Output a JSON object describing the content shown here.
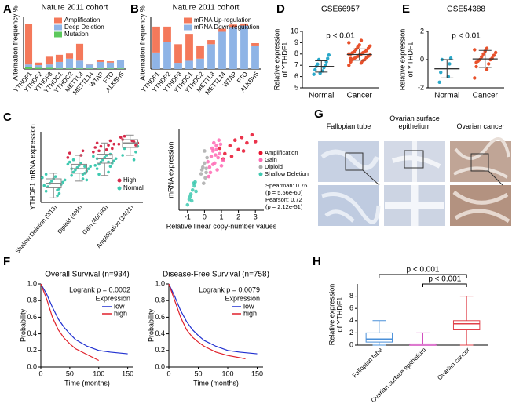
{
  "chart_data": [
    {
      "panel": "A",
      "type": "bar",
      "stacked": true,
      "title": "Nature 2011 cohort",
      "y_label": "Alternation frequency %",
      "categories": [
        "YTHDF1",
        "YTHDF2",
        "YTHDF3",
        "YTHDC1",
        "YTHDC2",
        "METTL3",
        "METTL14",
        "WTAP",
        "FTO",
        "ALKBH5"
      ],
      "ylim": [
        0,
        8
      ],
      "series": [
        {
          "name": "Amplification",
          "color": "#f4795b",
          "values": [
            6.3,
            0.4,
            1.2,
            1.1,
            0.8,
            2.6,
            0.1,
            0.3,
            0.2,
            0
          ]
        },
        {
          "name": "Deep Deletion",
          "color": "#8fb4e6",
          "values": [
            0.4,
            0.4,
            0.5,
            1.0,
            1.5,
            1.2,
            0.6,
            1.0,
            0.9,
            1.3
          ]
        },
        {
          "name": "Mutation",
          "color": "#5cc85c",
          "values": [
            0.3,
            0.2,
            0.2,
            0.1,
            0.1,
            0.1,
            0.1,
            0.1,
            0.1,
            0.1
          ]
        }
      ]
    },
    {
      "panel": "B",
      "type": "bar",
      "stacked": true,
      "title": "Nature 2011 cohort",
      "y_label": "Alternation frequency %",
      "categories": [
        "YTHDF1",
        "YTHDF2",
        "YTHDF3",
        "YTHDC1",
        "YTHDC2",
        "METTL3",
        "METTL14",
        "WTAP",
        "FTO",
        "ALKBH5"
      ],
      "ylim": [
        0,
        25
      ],
      "series": [
        {
          "name": "mRNA Up-regulation",
          "color": "#f4795b",
          "values": [
            12.5,
            7.5,
            9,
            13,
            6,
            2,
            1.5,
            1.5,
            1,
            1.5
          ]
        },
        {
          "name": "mRNA Down-regulation",
          "color": "#8fb4e6",
          "values": [
            8,
            13,
            3,
            4,
            5,
            12,
            18,
            20,
            21,
            11
          ]
        }
      ]
    },
    {
      "panel": "D",
      "type": "dot",
      "title": "GSE66957",
      "annotation": "p < 0.01",
      "y_label": [
        "Relative expression",
        "of YTHDF1"
      ],
      "categories": [
        "Normal",
        "Cancer"
      ],
      "ylim": [
        5,
        10
      ],
      "yticks": [
        5,
        6,
        7,
        8,
        9,
        10
      ],
      "groups": [
        {
          "color": "#2aa8c9",
          "mean": 6.9,
          "sd": 0.5,
          "values": [
            6.2,
            6.5,
            6.6,
            6.8,
            6.9,
            7.0,
            7.1,
            7.3,
            7.5,
            7.6,
            6.3,
            7.9
          ]
        },
        {
          "color": "#e8502a",
          "mean": 7.95,
          "sd": 0.5,
          "values": [
            7.0,
            7.2,
            7.3,
            7.4,
            7.5,
            7.5,
            7.6,
            7.7,
            7.7,
            7.8,
            7.8,
            7.9,
            7.9,
            8.0,
            8.0,
            8.0,
            8.1,
            8.1,
            8.2,
            8.2,
            8.3,
            8.4,
            8.5,
            8.6,
            8.7,
            8.8,
            9.0,
            9.2,
            7.6,
            8.1
          ]
        }
      ]
    },
    {
      "panel": "E",
      "type": "dot",
      "title": "GSE54388",
      "annotation": "p < 0.01",
      "y_label": [
        "Relative expression",
        "of YTHDF1"
      ],
      "categories": [
        "Normal",
        "Cancer"
      ],
      "ylim": [
        -2,
        2
      ],
      "yticks": [
        -2,
        0,
        2
      ],
      "groups": [
        {
          "color": "#2aa8c9",
          "mean": -0.65,
          "sd": 0.65,
          "values": [
            -1.6,
            -1.2,
            -0.9,
            -0.3,
            0.0,
            0.1
          ]
        },
        {
          "color": "#e8502a",
          "mean": 0.05,
          "sd": 0.6,
          "values": [
            -1.3,
            -0.7,
            -0.5,
            -0.3,
            -0.1,
            0,
            0,
            0.1,
            0.2,
            0.3,
            0.4,
            0.5,
            0.6,
            0.7,
            0.8,
            -0.2
          ]
        }
      ]
    },
    {
      "panel": "C",
      "type": "box",
      "y_label": "YTHDF1 mRNA expression",
      "categories": [
        "Shallow Deletion (0/18)",
        "Diploid (4/84)",
        "Gain (40/193)",
        "Amplification (14/21)"
      ],
      "ylim": [
        -3,
        3.3
      ],
      "boxes": [
        {
          "color": "#888888",
          "min": -2.6,
          "q1": -1.7,
          "median": -1.3,
          "q3": -0.9,
          "max": -0.4
        },
        {
          "color": "#888888",
          "min": -1.1,
          "q1": -0.4,
          "median": 0,
          "q3": 0.4,
          "max": 1.2
        },
        {
          "color": "#888888",
          "min": -0.6,
          "q1": 0.5,
          "median": 0.9,
          "q3": 1.3,
          "max": 2.3
        },
        {
          "color": "#888888",
          "min": 1.2,
          "q1": 1.9,
          "median": 2.3,
          "q3": 2.6,
          "max": 3.0
        }
      ],
      "series": [
        {
          "name": "High",
          "color": "#d62a4a",
          "values": [
            [],
            [
              1.0,
              1.2,
              1.4,
              1.6
            ],
            [
              1.5,
              1.7,
              1.9,
              2.1,
              2.3,
              2.5,
              1.6,
              1.8,
              2.0,
              2.2
            ],
            [
              2.2,
              2.5,
              2.8,
              2.4,
              2.6,
              2.1,
              2.9,
              2.3
            ]
          ]
        },
        {
          "name": "Normal",
          "color": "#3ec9b0",
          "values": [
            [
              -2.4,
              -2.0,
              -1.8,
              -1.6,
              -1.4,
              -1.3,
              -1.2,
              -1.1,
              -1.0,
              -0.9,
              -0.8,
              -0.7,
              -1.5,
              -1.9,
              -0.5,
              -2.2
            ],
            [
              -0.9,
              -0.6,
              -0.4,
              -0.3,
              -0.2,
              -0.1,
              0,
              0.1,
              0.2,
              0.3,
              0.4,
              0.5,
              0.6,
              -0.5,
              0.0,
              0.2,
              0.8,
              -1.0
            ],
            [
              -0.3,
              0,
              0.2,
              0.4,
              0.5,
              0.6,
              0.7,
              0.8,
              0.9,
              1.0,
              1.1,
              1.2,
              0.3,
              0.6,
              0.9,
              1.3,
              -0.5
            ],
            [
              0.8,
              1.2,
              1.5,
              1.8,
              2.0
            ]
          ]
        }
      ]
    },
    {
      "type": "scatter",
      "x_label": "Relative linear copy-number values",
      "y_label": "mRNA expression",
      "xlim": [
        -1.5,
        3.5
      ],
      "xticks": [
        -1,
        0,
        1,
        2,
        3
      ],
      "ylim": [
        -3,
        3
      ],
      "annotations": [
        "Spearman: 0.76",
        "(p = 5.56e-60)",
        "Pearson: 0.72",
        "(p = 2.12e-51)"
      ],
      "series": [
        {
          "name": "Amplification",
          "color": "#e8112d",
          "x": [
            0.9,
            1.2,
            1.5,
            1.8,
            2.0,
            2.2,
            2.5,
            2.8,
            3.0,
            1.1,
            1.6,
            2.3
          ],
          "values": [
            1.6,
            1.2,
            1.8,
            2.2,
            1.5,
            2.4,
            2.0,
            2.6,
            2.1,
            0.8,
            1.0,
            1.4
          ]
        },
        {
          "name": "Gain",
          "color": "#ff69b4",
          "x": [
            0.2,
            0.3,
            0.4,
            0.5,
            0.6,
            0.7,
            0.8,
            0.9,
            1.0,
            0.35,
            0.55,
            0.75,
            0.45,
            0.65,
            0.85,
            1.1,
            0.25,
            0.5,
            0.7,
            0.95
          ],
          "values": [
            0.6,
            0.2,
            1.0,
            1.4,
            0.5,
            1.8,
            0.9,
            1.2,
            0.3,
            -0.2,
            2.0,
            0.0,
            1.6,
            1.1,
            2.2,
            0.7,
            -0.5,
            0.4,
            1.5,
            1.9
          ]
        },
        {
          "name": "Diploid",
          "color": "#aaaaaa",
          "x": [
            -0.2,
            -0.1,
            0,
            0.05,
            0.1,
            0.15,
            -0.05,
            0.0,
            0.1,
            -0.15
          ],
          "values": [
            -0.3,
            0.2,
            0.5,
            -0.6,
            0.1,
            0.9,
            -1.0,
            1.4,
            -0.2,
            0.0
          ]
        },
        {
          "name": "Shallow Deletion",
          "color": "#3ec9b0",
          "x": [
            -1.0,
            -0.9,
            -0.8,
            -0.75,
            -0.7,
            -0.6,
            -0.55,
            -0.5,
            -0.85,
            -0.65
          ],
          "values": [
            -2.6,
            -2.2,
            -1.8,
            -2.3,
            -1.5,
            -1.2,
            -0.9,
            -1.6,
            -2.0,
            -1.0
          ]
        }
      ]
    },
    {
      "panel": "F",
      "type": "line",
      "title": "Overall Survival (n=934)",
      "annotation": "Logrank p = 0.0002",
      "legend_title": "Expression",
      "x_label": "Time (months)",
      "y_label": "Probability",
      "xlim": [
        0,
        160
      ],
      "xticks": [
        0,
        50,
        100,
        150
      ],
      "ylim": [
        0,
        1
      ],
      "yticks": [
        {
          "value": 0,
          "label": "0.0"
        },
        0.2,
        0.4,
        0.6,
        0.8,
        {
          "value": 1,
          "label": "1.0"
        }
      ],
      "series": [
        {
          "name": "low",
          "color": "#1f2fd0",
          "x": [
            0,
            10,
            20,
            30,
            40,
            50,
            60,
            80,
            100,
            120,
            150
          ],
          "values": [
            1,
            0.88,
            0.72,
            0.58,
            0.48,
            0.4,
            0.33,
            0.25,
            0.2,
            0.18,
            0.16
          ]
        },
        {
          "name": "high",
          "color": "#e0202a",
          "x": [
            0,
            10,
            20,
            30,
            40,
            50,
            60,
            80,
            100
          ],
          "values": [
            1,
            0.82,
            0.6,
            0.45,
            0.35,
            0.28,
            0.22,
            0.15,
            0.08
          ]
        }
      ]
    },
    {
      "type": "line",
      "title": "Disease-Free Survival (n=758)",
      "annotation": "Logrank p = 0.0079",
      "legend_title": "Expression",
      "x_label": "Time (months)",
      "y_label": "Probability",
      "xlim": [
        0,
        160
      ],
      "xticks": [
        0,
        50,
        100,
        150
      ],
      "ylim": [
        0,
        1
      ],
      "yticks": [
        {
          "value": 0,
          "label": "0.0"
        },
        0.2,
        0.4,
        0.6,
        0.8,
        {
          "value": 1,
          "label": "1.0"
        }
      ],
      "series": [
        {
          "name": "low",
          "color": "#1f2fd0",
          "x": [
            0,
            10,
            20,
            30,
            40,
            50,
            60,
            80,
            100,
            120,
            150
          ],
          "values": [
            1,
            0.85,
            0.68,
            0.55,
            0.45,
            0.38,
            0.32,
            0.25,
            0.2,
            0.18,
            0.16
          ]
        },
        {
          "name": "high",
          "color": "#e0202a",
          "x": [
            0,
            10,
            20,
            30,
            40,
            50,
            60,
            80,
            100,
            130
          ],
          "values": [
            1,
            0.8,
            0.6,
            0.45,
            0.36,
            0.3,
            0.25,
            0.18,
            0.14,
            0.1
          ]
        }
      ]
    },
    {
      "panel": "H",
      "type": "box",
      "y_label": [
        "Relative expression",
        "of YTHDF1"
      ],
      "categories": [
        "Fallopian tube",
        "Ovarian surface epithelium",
        "Ovarian cancer"
      ],
      "ylim": [
        0,
        10
      ],
      "yticks": [
        0,
        2,
        4,
        6,
        8
      ],
      "annotations": [
        "p < 0.001",
        "p < 0.001"
      ],
      "boxes": [
        {
          "color": "#4a90d9",
          "min": 0,
          "q1": 0.5,
          "median": 1,
          "q3": 2,
          "max": 4
        },
        {
          "color": "#d24fbf",
          "min": 0,
          "q1": 0,
          "median": 0,
          "q3": 0.2,
          "max": 2
        },
        {
          "color": "#e0404a",
          "min": 0,
          "q1": 2.5,
          "median": 3.5,
          "q3": 4,
          "max": 8
        }
      ]
    }
  ],
  "image_panel": {
    "panel": "G",
    "columns": [
      "Fallopian tube",
      "Ovarian surface epithelium",
      "Ovarian cancer"
    ]
  }
}
